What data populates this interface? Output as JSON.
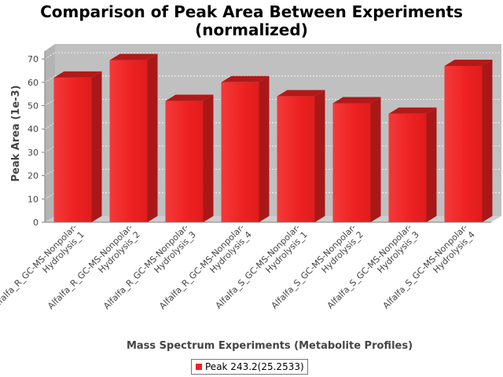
{
  "chart_data": {
    "type": "bar",
    "title_lines": [
      "Comparison of Peak Area Between Experiments",
      "(normalized)"
    ],
    "xlabel": "Mass Spectrum Experiments (Metabolite Profiles)",
    "ylabel": "Peak Area (1e-3)",
    "ylim": [
      0,
      75
    ],
    "yticks": [
      0,
      10,
      20,
      30,
      40,
      50,
      60,
      70
    ],
    "grid": true,
    "legend_position": "bottom",
    "categories": [
      [
        "Alfalfa_R_GC-MS-Nonpolar-",
        "Hydrolysis_1"
      ],
      [
        "Alfalfa_R_GC-MS-Nonpolar-",
        "Hydrolysis_2"
      ],
      [
        "Alfalfa_R_GC-MS-Nonpolar-",
        "Hydrolysis_3"
      ],
      [
        "Alfalfa_R_GC-MS-Nonpolar-",
        "Hydrolysis_4"
      ],
      [
        "Alfalfa_S_GC-MS-Nonpolar-",
        "Hydrolysis_1"
      ],
      [
        "Alfalfa_S_GC-MS-Nonpolar-",
        "Hydrolysis_2"
      ],
      [
        "Alfalfa_S_GC-MS-Nonpolar-",
        "Hydrolysis_3"
      ],
      [
        "Alfalfa_S_GC-MS-Nonpolar-",
        "Hydrolysis_4"
      ]
    ],
    "series": [
      {
        "name": "Peak 243.2(25.2533)",
        "color": "#ee2222",
        "values": [
          62,
          69.5,
          52,
          60,
          54,
          51,
          46.5,
          67
        ]
      }
    ]
  }
}
